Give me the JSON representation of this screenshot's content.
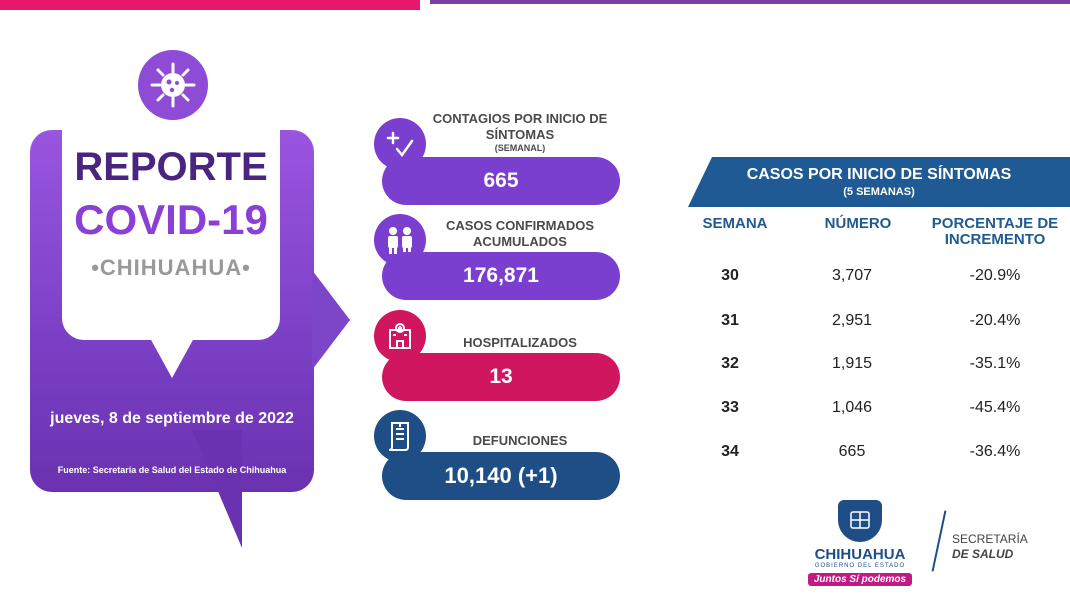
{
  "colors": {
    "purple": "#7b3fd0",
    "magenta": "#d0165f",
    "navy": "#1f4e86",
    "heading": "#4a2580"
  },
  "hero": {
    "line1": "REPORTE",
    "line2": "COVID-19",
    "line3": "•CHIHUAHUA•",
    "date": "jueves, 8 de septiembre de 2022",
    "source": "Fuente: Secretaría de Salud del Estado de Chihuahua",
    "icon": "virus-icon"
  },
  "stats": [
    {
      "label": "CONTAGIOS POR INICIO DE SÍNTOMAS",
      "sublabel": "(SEMANAL)",
      "value": "665",
      "icon": "plus-check-icon"
    },
    {
      "label": "CASOS CONFIRMADOS ACUMULADOS",
      "sublabel": "",
      "value": "176,871",
      "icon": "people-masks-icon"
    },
    {
      "label": "HOSPITALIZADOS",
      "sublabel": "",
      "value": "13",
      "icon": "hospital-icon"
    },
    {
      "label": "DEFUNCIONES",
      "sublabel": "",
      "value": "10,140 (+1)",
      "icon": "certificate-icon"
    }
  ],
  "table": {
    "title": "CASOS POR INICIO DE SÍNTOMAS",
    "subtitle": "(5 SEMANAS)",
    "columns": [
      "SEMANA",
      "NÚMERO",
      "PORCENTAJE DE INCREMENTO"
    ],
    "rows": [
      {
        "semana": "30",
        "numero": "3,707",
        "porcentaje": "-20.9%"
      },
      {
        "semana": "31",
        "numero": "2,951",
        "porcentaje": "-20.4%"
      },
      {
        "semana": "32",
        "numero": "1,915",
        "porcentaje": "-35.1%"
      },
      {
        "semana": "33",
        "numero": "1,046",
        "porcentaje": "-45.4%"
      },
      {
        "semana": "34",
        "numero": "665",
        "porcentaje": "-36.4%"
      }
    ]
  },
  "footer": {
    "logo_name": "CHIHUAHUA",
    "logo_sub": "GOBIERNO DEL ESTADO",
    "slogan": "Juntos Sí podemos",
    "secretaria_line1": "SECRETARÍA",
    "secretaria_line2": "DE SALUD"
  }
}
